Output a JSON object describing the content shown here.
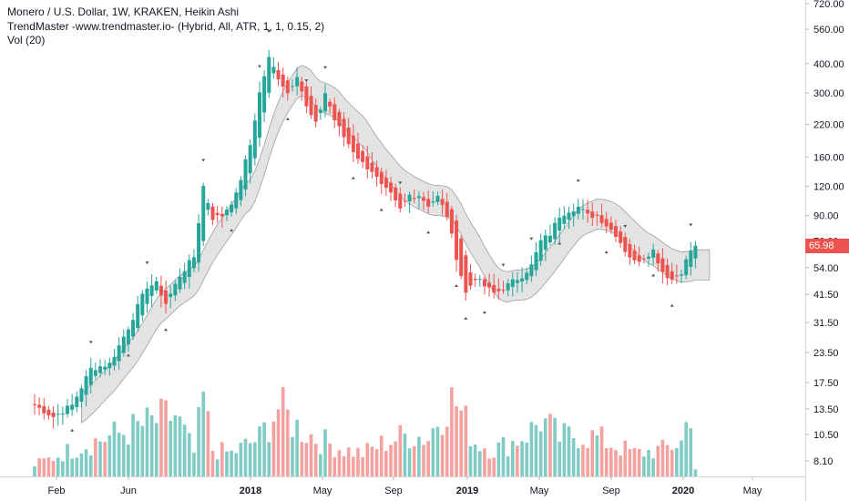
{
  "legend": {
    "line1": "Monero / U.S. Dollar, 1W, KRAKEN, Heikin Ashi",
    "line2": "TrendMaster -www.trendmaster.io- (Hybrid, All, ATR, 1, 1, 0.15, 2)",
    "line3": "Vol (20)"
  },
  "last_price": "65.98",
  "colors": {
    "up": "#26a69a",
    "down": "#ef5350",
    "vol_up": "#80cbc4",
    "vol_down": "#f4a19f",
    "band_fill": "#d9d9d9",
    "band_line": "#9e9e9e",
    "price_tag": "#ef5350"
  },
  "chart_data": {
    "type": "candlestick",
    "y_scale": "log",
    "y_ticks": [
      "720.00",
      "560.00",
      "400.00",
      "300.00",
      "220.00",
      "160.00",
      "120.00",
      "90.00",
      "70.00",
      "54.00",
      "41.50",
      "31.50",
      "23.50",
      "17.50",
      "13.50",
      "10.50",
      "8.10"
    ],
    "x_ticks": [
      {
        "label": "Feb",
        "bold": false
      },
      {
        "label": "Jun",
        "bold": false
      },
      {
        "label": "2018",
        "bold": true
      },
      {
        "label": "May",
        "bold": false
      },
      {
        "label": "Sep",
        "bold": false
      },
      {
        "label": "2019",
        "bold": true
      },
      {
        "label": "May",
        "bold": false
      },
      {
        "label": "Sep",
        "bold": false
      },
      {
        "label": "2020",
        "bold": true
      },
      {
        "label": "May",
        "bold": false
      }
    ],
    "anchors_close": [
      [
        0,
        14
      ],
      [
        4,
        12.5
      ],
      [
        8,
        14
      ],
      [
        12,
        20
      ],
      [
        16,
        21
      ],
      [
        20,
        30
      ],
      [
        24,
        45
      ],
      [
        26,
        46
      ],
      [
        28,
        38
      ],
      [
        31,
        50
      ],
      [
        34,
        60
      ],
      [
        36,
        120
      ],
      [
        38,
        88
      ],
      [
        40,
        90
      ],
      [
        43,
        110
      ],
      [
        46,
        180
      ],
      [
        48,
        300
      ],
      [
        50,
        420
      ],
      [
        52,
        350
      ],
      [
        54,
        300
      ],
      [
        56,
        360
      ],
      [
        58,
        260
      ],
      [
        60,
        220
      ],
      [
        62,
        300
      ],
      [
        64,
        230
      ],
      [
        66,
        195
      ],
      [
        68,
        170
      ],
      [
        70,
        150
      ],
      [
        72,
        140
      ],
      [
        74,
        120
      ],
      [
        76,
        110
      ],
      [
        78,
        95
      ],
      [
        80,
        110
      ],
      [
        82,
        110
      ],
      [
        84,
        100
      ],
      [
        86,
        108
      ],
      [
        88,
        90
      ],
      [
        90,
        60
      ],
      [
        92,
        42
      ],
      [
        94,
        49
      ],
      [
        96,
        45
      ],
      [
        98,
        42
      ],
      [
        100,
        44
      ],
      [
        102,
        47
      ],
      [
        104,
        50
      ],
      [
        106,
        55
      ],
      [
        108,
        70
      ],
      [
        110,
        75
      ],
      [
        112,
        90
      ],
      [
        114,
        95
      ],
      [
        116,
        98
      ],
      [
        118,
        90
      ],
      [
        120,
        90
      ],
      [
        122,
        82
      ],
      [
        124,
        75
      ],
      [
        126,
        64
      ],
      [
        128,
        57
      ],
      [
        130,
        60
      ],
      [
        132,
        64
      ],
      [
        134,
        52
      ],
      [
        136,
        48
      ],
      [
        138,
        52
      ],
      [
        140,
        64
      ],
      [
        141,
        66
      ]
    ],
    "volume_anchors": [
      [
        0,
        0.3
      ],
      [
        10,
        0.8
      ],
      [
        20,
        1.2
      ],
      [
        25,
        1.4
      ],
      [
        30,
        1.6
      ],
      [
        34,
        0.6
      ],
      [
        36,
        2.0
      ],
      [
        38,
        0.7
      ],
      [
        42,
        0.6
      ],
      [
        48,
        1.0
      ],
      [
        52,
        1.8
      ],
      [
        56,
        1.3
      ],
      [
        60,
        1.0
      ],
      [
        66,
        0.7
      ],
      [
        70,
        0.6
      ],
      [
        75,
        0.9
      ],
      [
        80,
        1.1
      ],
      [
        84,
        1.0
      ],
      [
        86,
        1.5
      ],
      [
        88,
        2.0
      ],
      [
        90,
        1.9
      ],
      [
        92,
        1.4
      ],
      [
        94,
        0.9
      ],
      [
        98,
        0.7
      ],
      [
        102,
        0.9
      ],
      [
        106,
        1.2
      ],
      [
        108,
        1.5
      ],
      [
        112,
        1.0
      ],
      [
        116,
        1.1
      ],
      [
        120,
        1.0
      ],
      [
        124,
        0.8
      ],
      [
        128,
        0.6
      ],
      [
        134,
        0.7
      ],
      [
        138,
        0.9
      ],
      [
        140,
        1.8
      ],
      [
        141,
        0.2
      ]
    ],
    "arrow_marks": [
      {
        "i": 8,
        "dir": "up"
      },
      {
        "i": 12,
        "dir": "down"
      },
      {
        "i": 20,
        "dir": "up"
      },
      {
        "i": 24,
        "dir": "down"
      },
      {
        "i": 28,
        "dir": "up"
      },
      {
        "i": 36,
        "dir": "down"
      },
      {
        "i": 42,
        "dir": "up"
      },
      {
        "i": 48,
        "dir": "down"
      },
      {
        "i": 50,
        "dir": "down"
      },
      {
        "i": 54,
        "dir": "up"
      },
      {
        "i": 58,
        "dir": "down"
      },
      {
        "i": 62,
        "dir": "down"
      },
      {
        "i": 68,
        "dir": "up"
      },
      {
        "i": 74,
        "dir": "up"
      },
      {
        "i": 78,
        "dir": "down"
      },
      {
        "i": 84,
        "dir": "up"
      },
      {
        "i": 90,
        "dir": "up"
      },
      {
        "i": 92,
        "dir": "up"
      },
      {
        "i": 96,
        "dir": "up"
      },
      {
        "i": 100,
        "dir": "down"
      },
      {
        "i": 106,
        "dir": "down"
      },
      {
        "i": 112,
        "dir": "up"
      },
      {
        "i": 116,
        "dir": "down"
      },
      {
        "i": 122,
        "dir": "up"
      },
      {
        "i": 126,
        "dir": "down"
      },
      {
        "i": 132,
        "dir": "up"
      },
      {
        "i": 136,
        "dir": "up"
      },
      {
        "i": 140,
        "dir": "down"
      }
    ]
  }
}
